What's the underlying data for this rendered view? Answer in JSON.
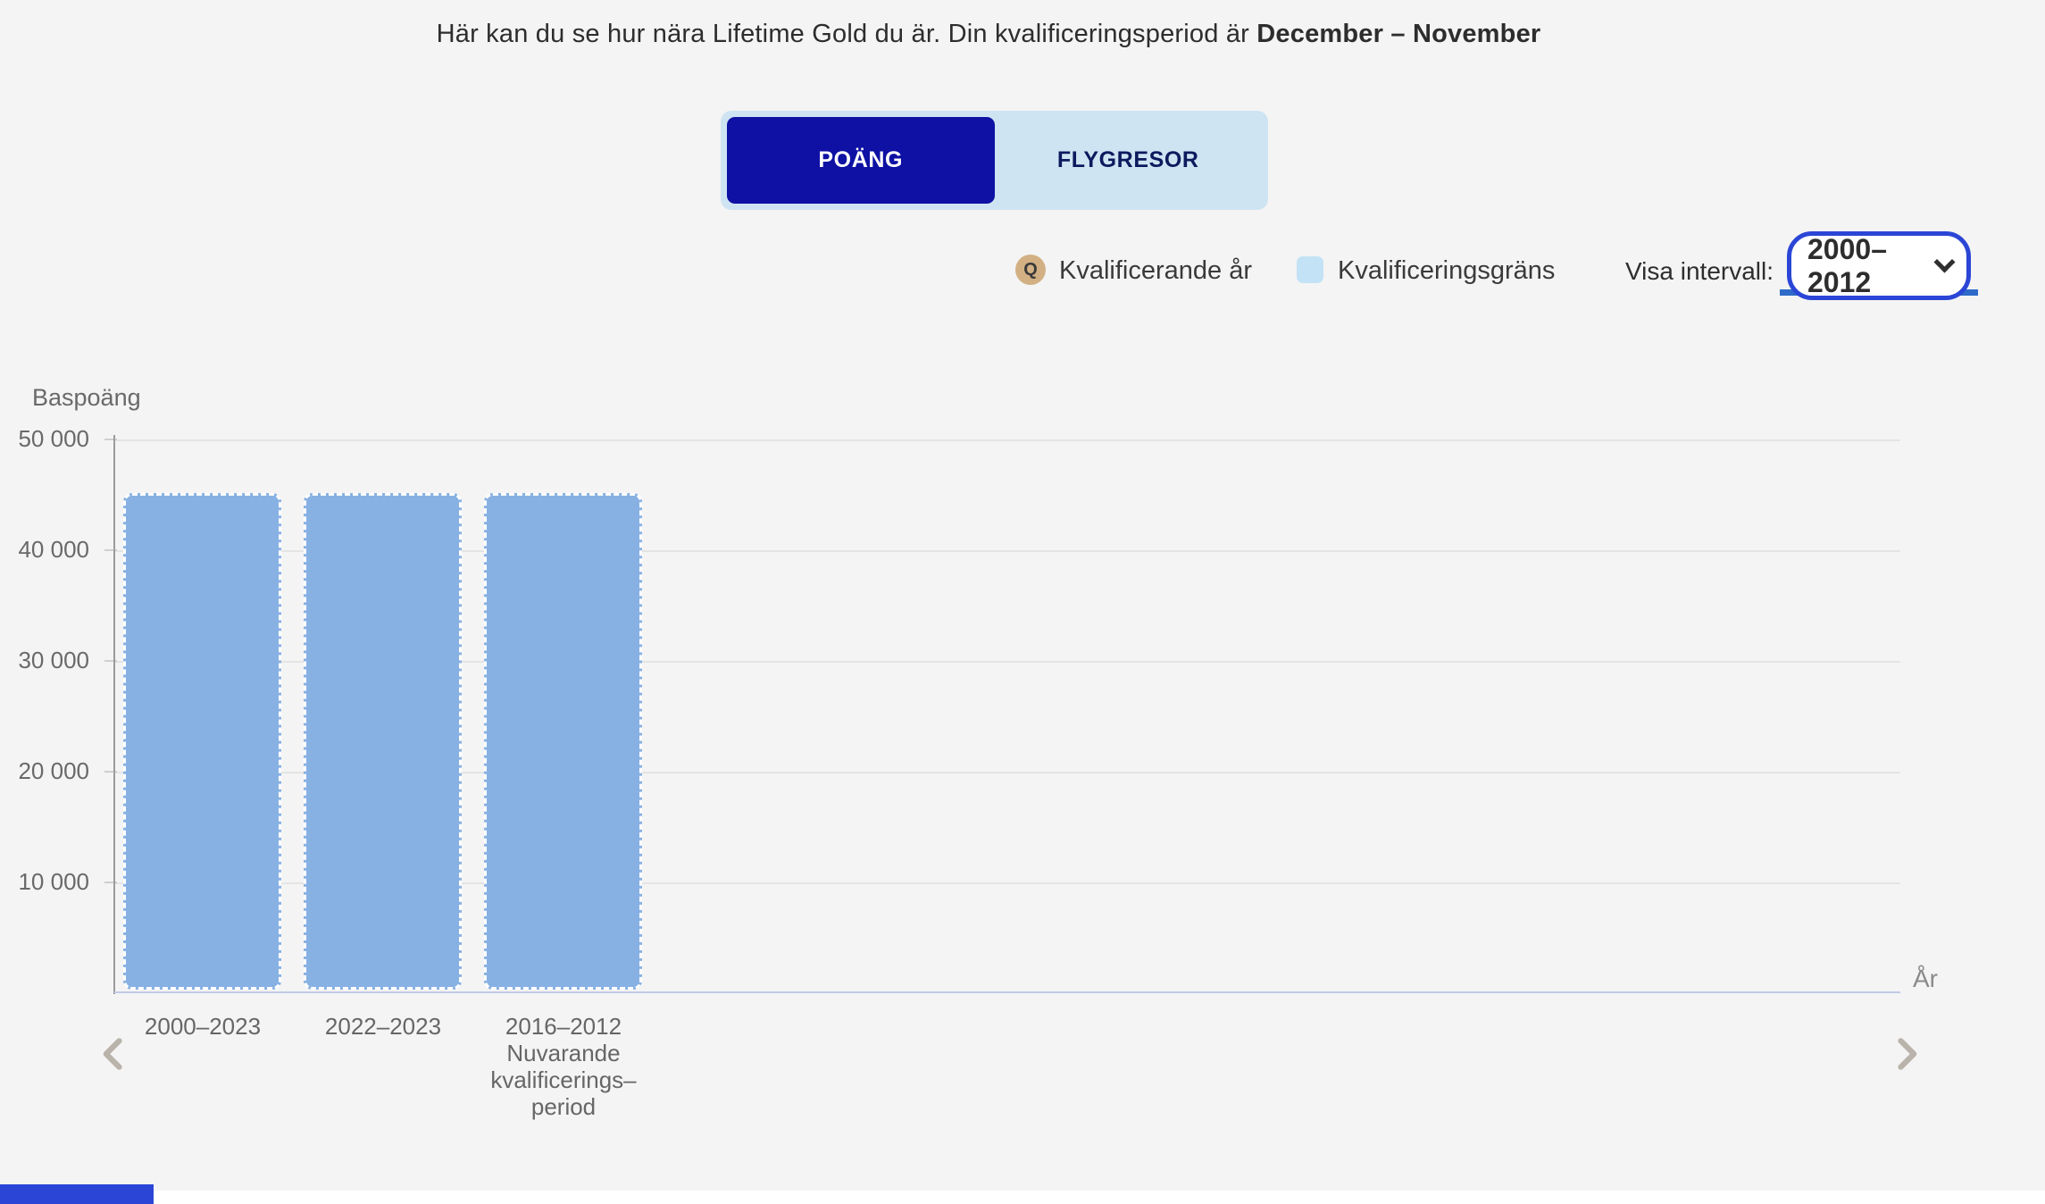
{
  "title": {
    "prefix": "Här kan du se hur nära Lifetime Gold du är. Din kvalificeringsperiod är ",
    "bold": "December – November"
  },
  "tabs": [
    {
      "label": "POÄNG",
      "active": true
    },
    {
      "label": "FLYGRESOR",
      "active": false
    }
  ],
  "legend": {
    "q_symbol": "Q",
    "qualifying_year_label": "Kvalificerande år",
    "qualification_limit_label": "Kvalificeringsgräns"
  },
  "interval_select": {
    "label": "Visa intervall:",
    "value": "2000–2012"
  },
  "chart_data": {
    "type": "bar",
    "title": "",
    "ylabel": "Baspoäng",
    "xlabel": "År",
    "ylim": [
      0,
      50000
    ],
    "ytick_labels": [
      "50 000",
      "40 000",
      "30 000",
      "20 000",
      "10 000"
    ],
    "ytick_values": [
      50000,
      40000,
      30000,
      20000,
      10000
    ],
    "categories": [
      "2000–2023",
      "2022–2023",
      "2016–2012"
    ],
    "category_sublabels": [
      "",
      "",
      "Nuvarande kvalificerings– period"
    ],
    "series": [
      {
        "name": "Kvalificeringsgräns",
        "values": [
          45000,
          45000,
          45000
        ],
        "style": "light-blue fill with white dashed outline, rounded corners"
      }
    ],
    "grid": true,
    "legend_position": "top-right",
    "bar_color": "#88b1e3"
  },
  "colors": {
    "background": "#f4f4f4",
    "brand_dark_blue": "#0e11a3",
    "tab_container_blue": "#cfe4f2",
    "accent_focus_blue": "#2b46d6",
    "underline_blue": "#2e6bc9",
    "bar_fill": "#88b1e3",
    "legend_q_gold": "#d2b084",
    "legend_swatch_blue": "#c3e2f5"
  }
}
